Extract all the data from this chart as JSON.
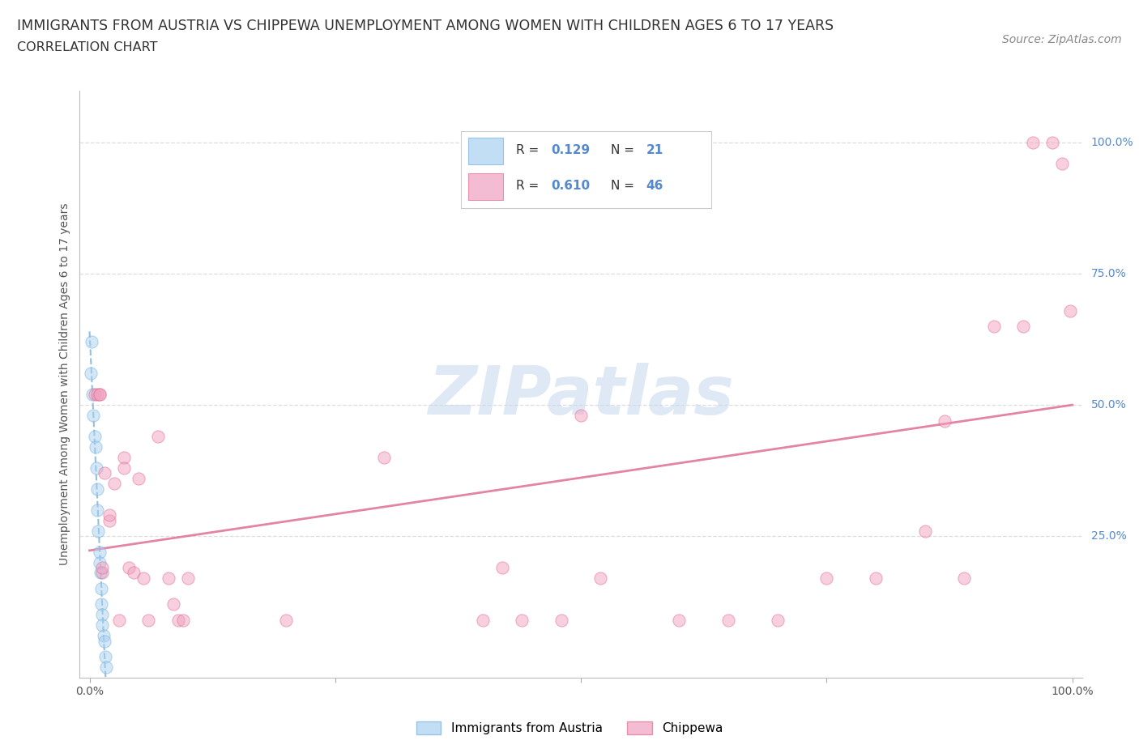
{
  "title_line1": "IMMIGRANTS FROM AUSTRIA VS CHIPPEWA UNEMPLOYMENT AMONG WOMEN WITH CHILDREN AGES 6 TO 17 YEARS",
  "title_line2": "CORRELATION CHART",
  "source_text": "Source: ZipAtlas.com",
  "ylabel": "Unemployment Among Women with Children Ages 6 to 17 years",
  "watermark": "ZIPatlas",
  "r1_val": "0.129",
  "n1_val": "21",
  "r2_val": "0.610",
  "n2_val": "46",
  "austria_color": "#a8d0f0",
  "austria_edge_color": "#7ab0e0",
  "chippewa_color": "#f0a0c0",
  "chippewa_edge_color": "#e07090",
  "austria_trend_color": "#7ab0d8",
  "chippewa_trend_color": "#e07898",
  "background_color": "#ffffff",
  "grid_color": "#dddddd",
  "right_tick_color": "#5588cc",
  "text_color": "#333333",
  "austria_scatter_x": [
    0.002,
    0.003,
    0.004,
    0.005,
    0.006,
    0.007,
    0.008,
    0.008,
    0.009,
    0.01,
    0.01,
    0.011,
    0.012,
    0.012,
    0.013,
    0.013,
    0.014,
    0.015,
    0.016,
    0.017,
    0.001
  ],
  "austria_scatter_y": [
    0.62,
    0.52,
    0.48,
    0.44,
    0.42,
    0.38,
    0.34,
    0.3,
    0.26,
    0.22,
    0.2,
    0.18,
    0.15,
    0.12,
    0.1,
    0.08,
    0.06,
    0.05,
    0.02,
    0.0,
    0.56
  ],
  "chippewa_scatter_x": [
    0.005,
    0.008,
    0.01,
    0.01,
    0.013,
    0.013,
    0.015,
    0.02,
    0.02,
    0.025,
    0.03,
    0.035,
    0.035,
    0.04,
    0.045,
    0.05,
    0.055,
    0.06,
    0.07,
    0.08,
    0.085,
    0.09,
    0.095,
    0.1,
    0.2,
    0.3,
    0.4,
    0.42,
    0.44,
    0.48,
    0.5,
    0.52,
    0.6,
    0.65,
    0.7,
    0.75,
    0.8,
    0.85,
    0.87,
    0.89,
    0.92,
    0.95,
    0.96,
    0.98,
    0.99,
    0.998
  ],
  "chippewa_scatter_y": [
    0.52,
    0.52,
    0.52,
    0.52,
    0.18,
    0.19,
    0.37,
    0.28,
    0.29,
    0.35,
    0.09,
    0.4,
    0.38,
    0.19,
    0.18,
    0.36,
    0.17,
    0.09,
    0.44,
    0.17,
    0.12,
    0.09,
    0.09,
    0.17,
    0.09,
    0.4,
    0.09,
    0.19,
    0.09,
    0.09,
    0.48,
    0.17,
    0.09,
    0.09,
    0.09,
    0.17,
    0.17,
    0.26,
    0.47,
    0.17,
    0.65,
    0.65,
    1.0,
    1.0,
    0.96,
    0.68
  ],
  "xlim": [
    -0.01,
    1.01
  ],
  "ylim": [
    -0.02,
    1.1
  ],
  "title_fontsize": 12.5,
  "subtitle_fontsize": 11.5,
  "source_fontsize": 10,
  "axis_label_fontsize": 10,
  "tick_fontsize": 10,
  "scatter_size": 120,
  "scatter_alpha": 0.5,
  "legend_label1": "Immigrants from Austria",
  "legend_label2": "Chippewa"
}
